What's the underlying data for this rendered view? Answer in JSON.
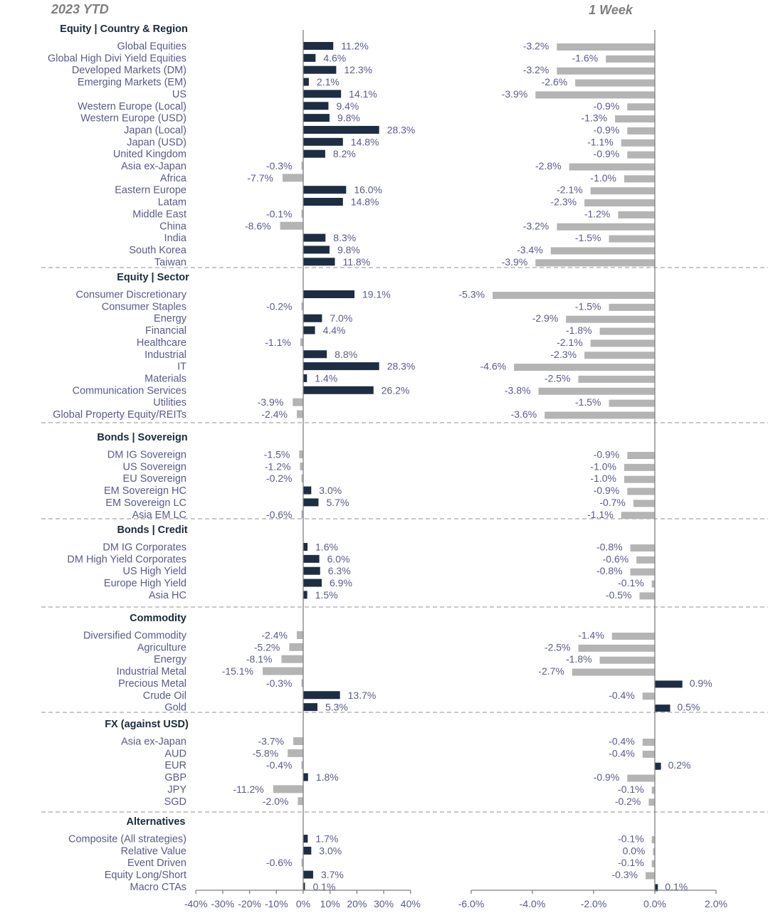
{
  "chart_data": {
    "type": "bar",
    "orientation": "horizontal",
    "panels": [
      {
        "key": "ytd",
        "title": "2023 YTD",
        "xlim": [
          -40,
          40
        ],
        "ticks": [
          "-40%",
          "-30%",
          "-20%",
          "-10%",
          "0%",
          "10%",
          "20%",
          "30%",
          "40%"
        ]
      },
      {
        "key": "week",
        "title": "1 Week",
        "xlim": [
          -6,
          2
        ],
        "ticks": [
          "-6.0%",
          "-4.0%",
          "-2.0%",
          "0.0%",
          "2.0%"
        ]
      }
    ],
    "colors": {
      "positive": "#1d2d44",
      "negative": "#b4b4b4"
    },
    "sections": [
      {
        "title": "Equity | Country & Region",
        "rows": [
          {
            "label": "Global Equities",
            "ytd": 11.2,
            "week": -3.2
          },
          {
            "label": "Global High Divi Yield Equities",
            "ytd": 4.6,
            "week": -1.6
          },
          {
            "label": "Developed Markets (DM)",
            "ytd": 12.3,
            "week": -3.2
          },
          {
            "label": "Emerging Markets (EM)",
            "ytd": 2.1,
            "week": -2.6
          },
          {
            "label": "US",
            "ytd": 14.1,
            "week": -3.9
          },
          {
            "label": "Western Europe (Local)",
            "ytd": 9.4,
            "week": -0.9
          },
          {
            "label": "Western Europe (USD)",
            "ytd": 9.8,
            "week": -1.3
          },
          {
            "label": "Japan (Local)",
            "ytd": 28.3,
            "week": -0.9
          },
          {
            "label": "Japan (USD)",
            "ytd": 14.8,
            "week": -1.1
          },
          {
            "label": "United Kingdom",
            "ytd": 8.2,
            "week": -0.9
          },
          {
            "label": "Asia ex-Japan",
            "ytd": -0.3,
            "week": -2.8
          },
          {
            "label": "Africa",
            "ytd": -7.7,
            "week": -1.0
          },
          {
            "label": "Eastern Europe",
            "ytd": 16.0,
            "week": -2.1
          },
          {
            "label": "Latam",
            "ytd": 14.8,
            "week": -2.3
          },
          {
            "label": "Middle East",
            "ytd": -0.1,
            "week": -1.2
          },
          {
            "label": "China",
            "ytd": -8.6,
            "week": -3.2
          },
          {
            "label": "India",
            "ytd": 8.3,
            "week": -1.5
          },
          {
            "label": "South Korea",
            "ytd": 9.8,
            "week": -3.4
          },
          {
            "label": "Taiwan",
            "ytd": 11.8,
            "week": -3.9
          }
        ]
      },
      {
        "title": "Equity | Sector",
        "rows": [
          {
            "label": "Consumer Discretionary",
            "ytd": 19.1,
            "week": -5.3
          },
          {
            "label": "Consumer Staples",
            "ytd": -0.2,
            "week": -1.5
          },
          {
            "label": "Energy",
            "ytd": 7.0,
            "week": -2.9
          },
          {
            "label": "Financial",
            "ytd": 4.4,
            "week": -1.8
          },
          {
            "label": "Healthcare",
            "ytd": -1.1,
            "week": -2.1
          },
          {
            "label": "Industrial",
            "ytd": 8.8,
            "week": -2.3
          },
          {
            "label": "IT",
            "ytd": 28.3,
            "week": -4.6
          },
          {
            "label": "Materials",
            "ytd": 1.4,
            "week": -2.5
          },
          {
            "label": "Communication Services",
            "ytd": 26.2,
            "week": -3.8
          },
          {
            "label": "Utilities",
            "ytd": -3.9,
            "week": -1.5
          },
          {
            "label": "Global Property Equity/REITs",
            "ytd": -2.4,
            "week": -3.6
          }
        ]
      },
      {
        "title": "Bonds | Sovereign",
        "rows": [
          {
            "label": "DM IG Sovereign",
            "ytd": -1.5,
            "week": -0.9
          },
          {
            "label": "US Sovereign",
            "ytd": -1.2,
            "week": -1.0
          },
          {
            "label": "EU Sovereign",
            "ytd": -0.2,
            "week": -1.0
          },
          {
            "label": "EM Sovereign HC",
            "ytd": 3.0,
            "week": -0.9
          },
          {
            "label": "EM Sovereign LC",
            "ytd": 5.7,
            "week": -0.7
          },
          {
            "label": "Asia EM LC",
            "ytd": -0.6,
            "week": -1.1
          }
        ]
      },
      {
        "title": "Bonds | Credit",
        "rows": [
          {
            "label": "DM IG Corporates",
            "ytd": 1.6,
            "week": -0.8
          },
          {
            "label": "DM High Yield Corporates",
            "ytd": 6.0,
            "week": -0.6
          },
          {
            "label": "US High Yield",
            "ytd": 6.3,
            "week": -0.8
          },
          {
            "label": "Europe High Yield",
            "ytd": 6.9,
            "week": -0.1
          },
          {
            "label": "Asia HC",
            "ytd": 1.5,
            "week": -0.5
          }
        ]
      },
      {
        "title": "Commodity",
        "rows": [
          {
            "label": "Diversified Commodity",
            "ytd": -2.4,
            "week": -1.4
          },
          {
            "label": "Agriculture",
            "ytd": -5.2,
            "week": -2.5
          },
          {
            "label": "Energy",
            "ytd": -8.1,
            "week": -1.8
          },
          {
            "label": "Industrial Metal",
            "ytd": -15.1,
            "week": -2.7
          },
          {
            "label": "Precious Metal",
            "ytd": -0.3,
            "week": 0.9
          },
          {
            "label": "Crude Oil",
            "ytd": 13.7,
            "week": -0.4
          },
          {
            "label": "Gold",
            "ytd": 5.3,
            "week": 0.5
          }
        ]
      },
      {
        "title": "FX (against USD)",
        "rows": [
          {
            "label": "Asia ex-Japan",
            "ytd": -3.7,
            "week": -0.4
          },
          {
            "label": "AUD",
            "ytd": -5.8,
            "week": -0.4
          },
          {
            "label": "EUR",
            "ytd": -0.4,
            "week": 0.2
          },
          {
            "label": "GBP",
            "ytd": 1.8,
            "week": -0.9
          },
          {
            "label": "JPY",
            "ytd": -11.2,
            "week": -0.1
          },
          {
            "label": "SGD",
            "ytd": -2.0,
            "week": -0.2
          }
        ]
      },
      {
        "title": "Alternatives",
        "rows": [
          {
            "label": "Composite (All strategies)",
            "ytd": 1.7,
            "week": -0.1
          },
          {
            "label": "Relative Value",
            "ytd": 3.0,
            "week": 0.0
          },
          {
            "label": "Event Driven",
            "ytd": -0.6,
            "week": -0.1
          },
          {
            "label": "Equity Long/Short",
            "ytd": 3.7,
            "week": -0.3
          },
          {
            "label": "Macro CTAs",
            "ytd": 0.1,
            "week": 0.1
          }
        ]
      }
    ]
  }
}
